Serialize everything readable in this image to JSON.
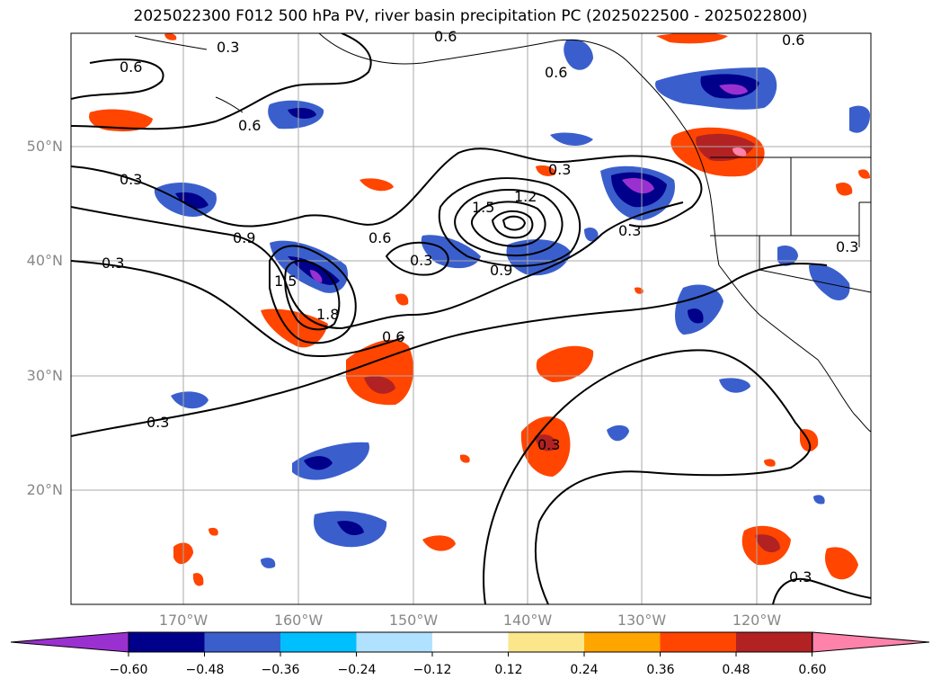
{
  "title": "2025022300 F012 500 hPa PV, river basin precipitation PC (2025022500 - 2025022800)",
  "lat_labels": [
    "50°N",
    "40°N",
    "30°N",
    "20°N"
  ],
  "lon_labels": [
    "170°W",
    "160°W",
    "150°W",
    "140°W",
    "130°W",
    "120°W"
  ],
  "contour_labels": [
    "0.3",
    "0.6",
    "0.6",
    "0.6",
    "0.6",
    "0.6",
    "0.3",
    "0.9",
    "0.3",
    "1.5",
    "1.8",
    "0.6",
    "1.5",
    "1.2",
    "0.9",
    "0.3",
    "0.3",
    "0.6",
    "0.3",
    "0.3",
    "0.3",
    "0.3",
    "0.3"
  ],
  "colorbar": {
    "ticks": [
      "−0.60",
      "−0.48",
      "−0.36",
      "−0.24",
      "−0.12",
      "0.12",
      "0.24",
      "0.36",
      "0.48",
      "0.60"
    ],
    "colors": [
      "#9b30d0",
      "#00008b",
      "#3a5fcd",
      "#00bfff",
      "#b0e2ff",
      "#ffffff",
      "#fce68c",
      "#ffa500",
      "#ff4500",
      "#b22222",
      "#ff82ab"
    ]
  }
}
